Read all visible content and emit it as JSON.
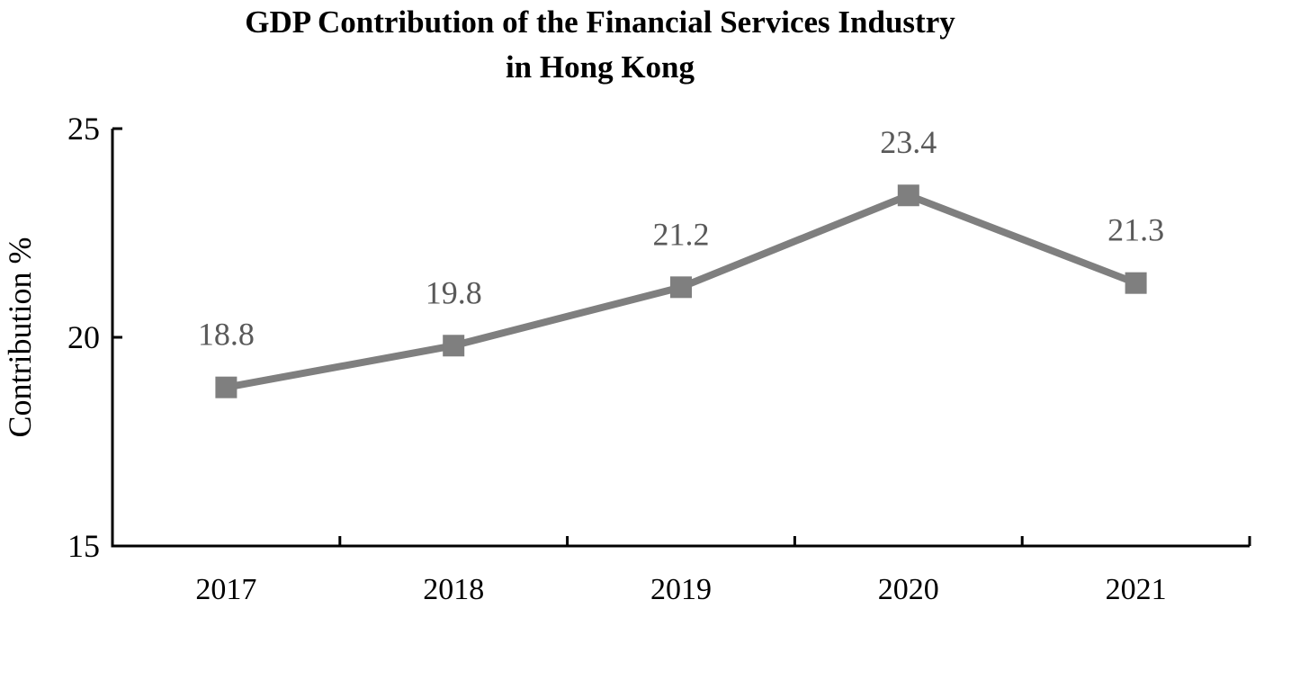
{
  "chart_data": {
    "type": "line",
    "title_lines": [
      "GDP Contribution of the Financial Services Industry",
      "in Hong Kong"
    ],
    "xlabel": "",
    "ylabel": "Contribution %",
    "categories": [
      "2017",
      "2018",
      "2019",
      "2020",
      "2021"
    ],
    "series": [
      {
        "values": [
          18.8,
          19.8,
          21.2,
          23.4,
          21.3
        ],
        "data_labels": [
          "18.8",
          "19.8",
          "21.2",
          "23.4",
          "21.3"
        ],
        "color": "#7f7f7f",
        "marker": "square"
      }
    ],
    "ylim": [
      15,
      25
    ],
    "yticks": [
      15,
      20,
      25
    ],
    "ytick_labels": [
      "15",
      "20",
      "25"
    ],
    "grid": false,
    "legend": "none",
    "colors": {
      "line": "#7f7f7f",
      "data_label": "#595959",
      "axis": "#000000"
    }
  }
}
